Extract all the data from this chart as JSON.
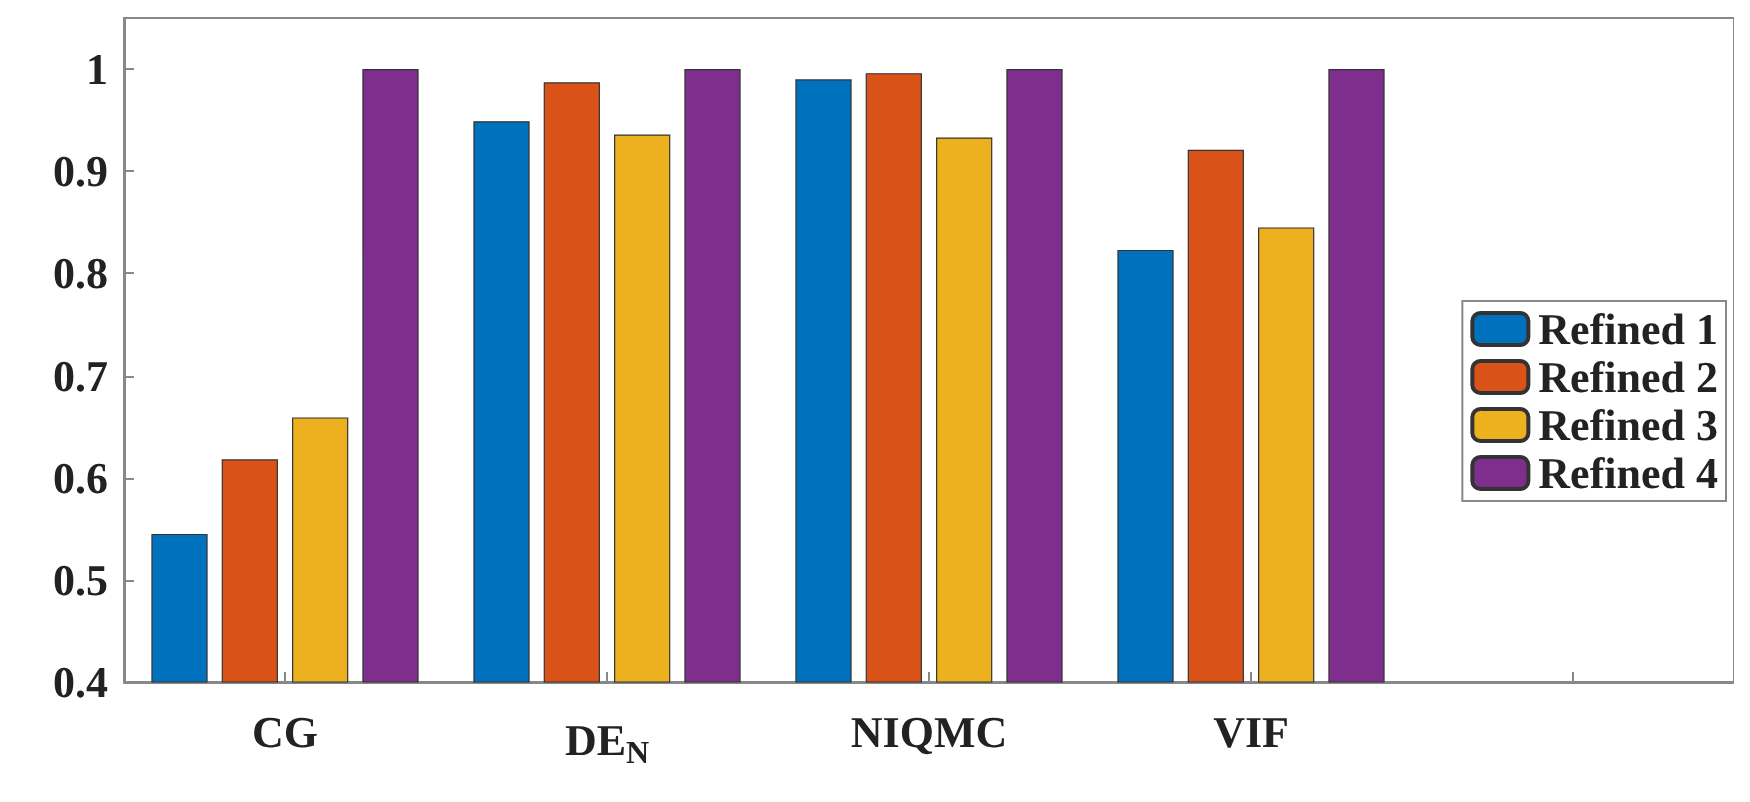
{
  "chart_data": {
    "type": "bar",
    "categories": [
      "CG",
      "DE$_{N}$",
      "NIQMC",
      "VIF",
      null
    ],
    "series": [
      {
        "name": "Refined 1",
        "color": "#0072bd",
        "values": [
          0.545,
          0.949,
          0.99,
          0.823,
          null
        ]
      },
      {
        "name": "Refined 2",
        "color": "#d95319",
        "values": [
          0.618,
          0.987,
          0.996,
          0.921,
          null
        ]
      },
      {
        "name": "Refined 3",
        "color": "#edb120",
        "values": [
          0.659,
          0.936,
          0.933,
          0.845,
          null
        ]
      },
      {
        "name": "Refined 4",
        "color": "#7e2f8e",
        "values": [
          1,
          1,
          1,
          1,
          null
        ]
      }
    ],
    "ylim": [
      0.4,
      1.05
    ],
    "yticks": [
      0.4,
      0.5,
      0.6,
      0.7,
      0.8,
      0.9,
      1
    ],
    "grid": false,
    "legend": "right"
  }
}
